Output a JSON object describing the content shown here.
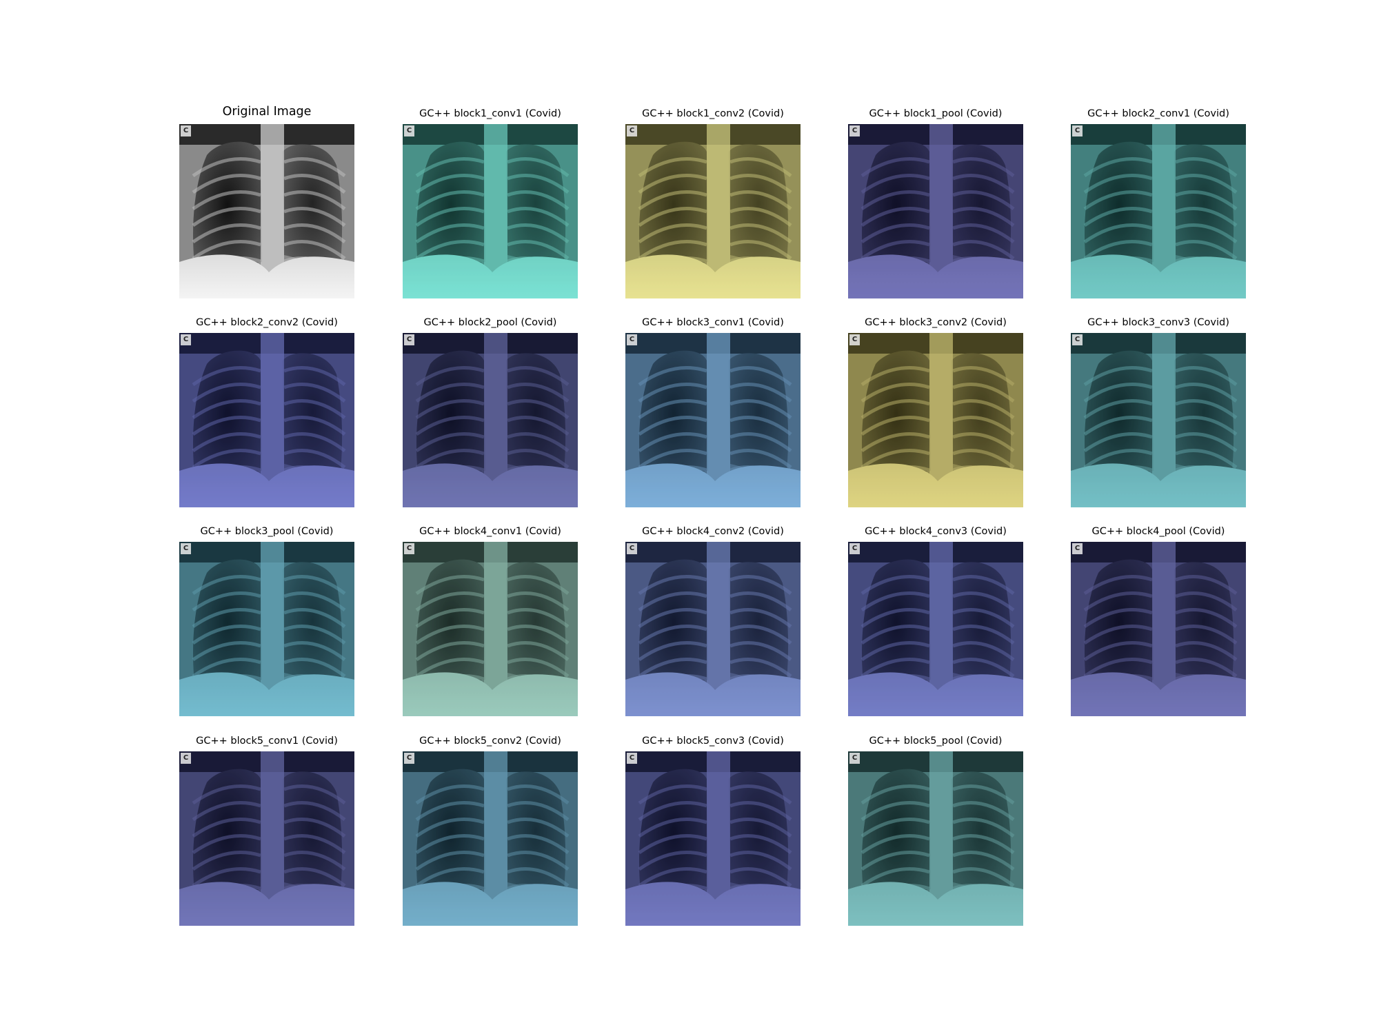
{
  "figure": {
    "panels": [
      {
        "title": "Original Image",
        "badge": "C",
        "overlay": "none"
      },
      {
        "title": "GC++ block1_conv1 (Covid)",
        "badge": "C",
        "overlay": "#35e0c8"
      },
      {
        "title": "GC++ block1_conv2 (Covid)",
        "badge": "C",
        "overlay": "#e8e05a"
      },
      {
        "title": "GC++ block1_pool (Covid)",
        "badge": "C",
        "overlay": "#2a2a9a"
      },
      {
        "title": "GC++ block2_conv1 (Covid)",
        "badge": "C",
        "overlay": "#28b8b0"
      },
      {
        "title": "GC++ block2_conv2 (Covid)",
        "badge": "C",
        "overlay": "#2a36b8"
      },
      {
        "title": "GC++ block2_pool (Covid)",
        "badge": "C",
        "overlay": "#222a90"
      },
      {
        "title": "GC++ block3_conv1 (Covid)",
        "badge": "C",
        "overlay": "#3a8ad0"
      },
      {
        "title": "GC++ block3_conv2 (Covid)",
        "badge": "C",
        "overlay": "#d8c840"
      },
      {
        "title": "GC++ block3_conv3 (Covid)",
        "badge": "C",
        "overlay": "#2aa8b0"
      },
      {
        "title": "GC++ block3_pool (Covid)",
        "badge": "C",
        "overlay": "#2aa0c0"
      },
      {
        "title": "GC++ block4_conv1 (Covid)",
        "badge": "C",
        "overlay": "#6ab8a0"
      },
      {
        "title": "GC++ block4_conv2 (Covid)",
        "badge": "C",
        "overlay": "#3a5ac0"
      },
      {
        "title": "GC++ block4_conv3 (Covid)",
        "badge": "C",
        "overlay": "#2a3ab0"
      },
      {
        "title": "GC++ block4_pool (Covid)",
        "badge": "C",
        "overlay": "#262a98"
      },
      {
        "title": "GC++ block5_conv1 (Covid)",
        "badge": "C",
        "overlay": "#262c9a"
      },
      {
        "title": "GC++ block5_conv2 (Covid)",
        "badge": "C",
        "overlay": "#2a8ab8"
      },
      {
        "title": "GC++ block5_conv3 (Covid)",
        "badge": "C",
        "overlay": "#2830a8"
      },
      {
        "title": "GC++ block5_pool (Covid)",
        "badge": "C",
        "overlay": "#3aa8a8"
      }
    ]
  }
}
